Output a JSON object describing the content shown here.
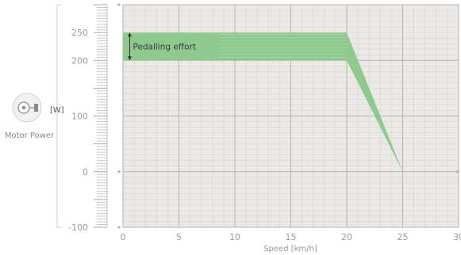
{
  "chart_data": {
    "type": "area",
    "xlabel": "Speed [km/h]",
    "ylabel": "Motor Power",
    "y_unit": "[W]",
    "xlim": [
      0,
      30
    ],
    "ylim": [
      -100,
      300
    ],
    "x_ticks": [
      "0",
      "5",
      "10",
      "15",
      "20",
      "25",
      "30"
    ],
    "y_ticks": [
      "250",
      "200",
      "100",
      "0",
      "-100"
    ],
    "grid": true,
    "series": [
      {
        "upper": {
          "x": [
            0,
            20,
            25
          ],
          "y": [
            250,
            250,
            0
          ]
        },
        "lower": {
          "x": [
            0,
            20,
            25
          ],
          "y": [
            200,
            200,
            0
          ]
        }
      }
    ],
    "annotations": [
      {
        "text": "Pedalling effort",
        "x": 0.6,
        "y_from": 200,
        "y_to": 250
      }
    ],
    "colors": {
      "fill": "#8ec98e",
      "plot_background": "#ebe9e6",
      "grid_major": "#b3b3b3",
      "grid_minor": "#d6d4d0",
      "text": "#9a9a9a"
    }
  },
  "icons": {
    "motor": "motor-power-icon"
  }
}
